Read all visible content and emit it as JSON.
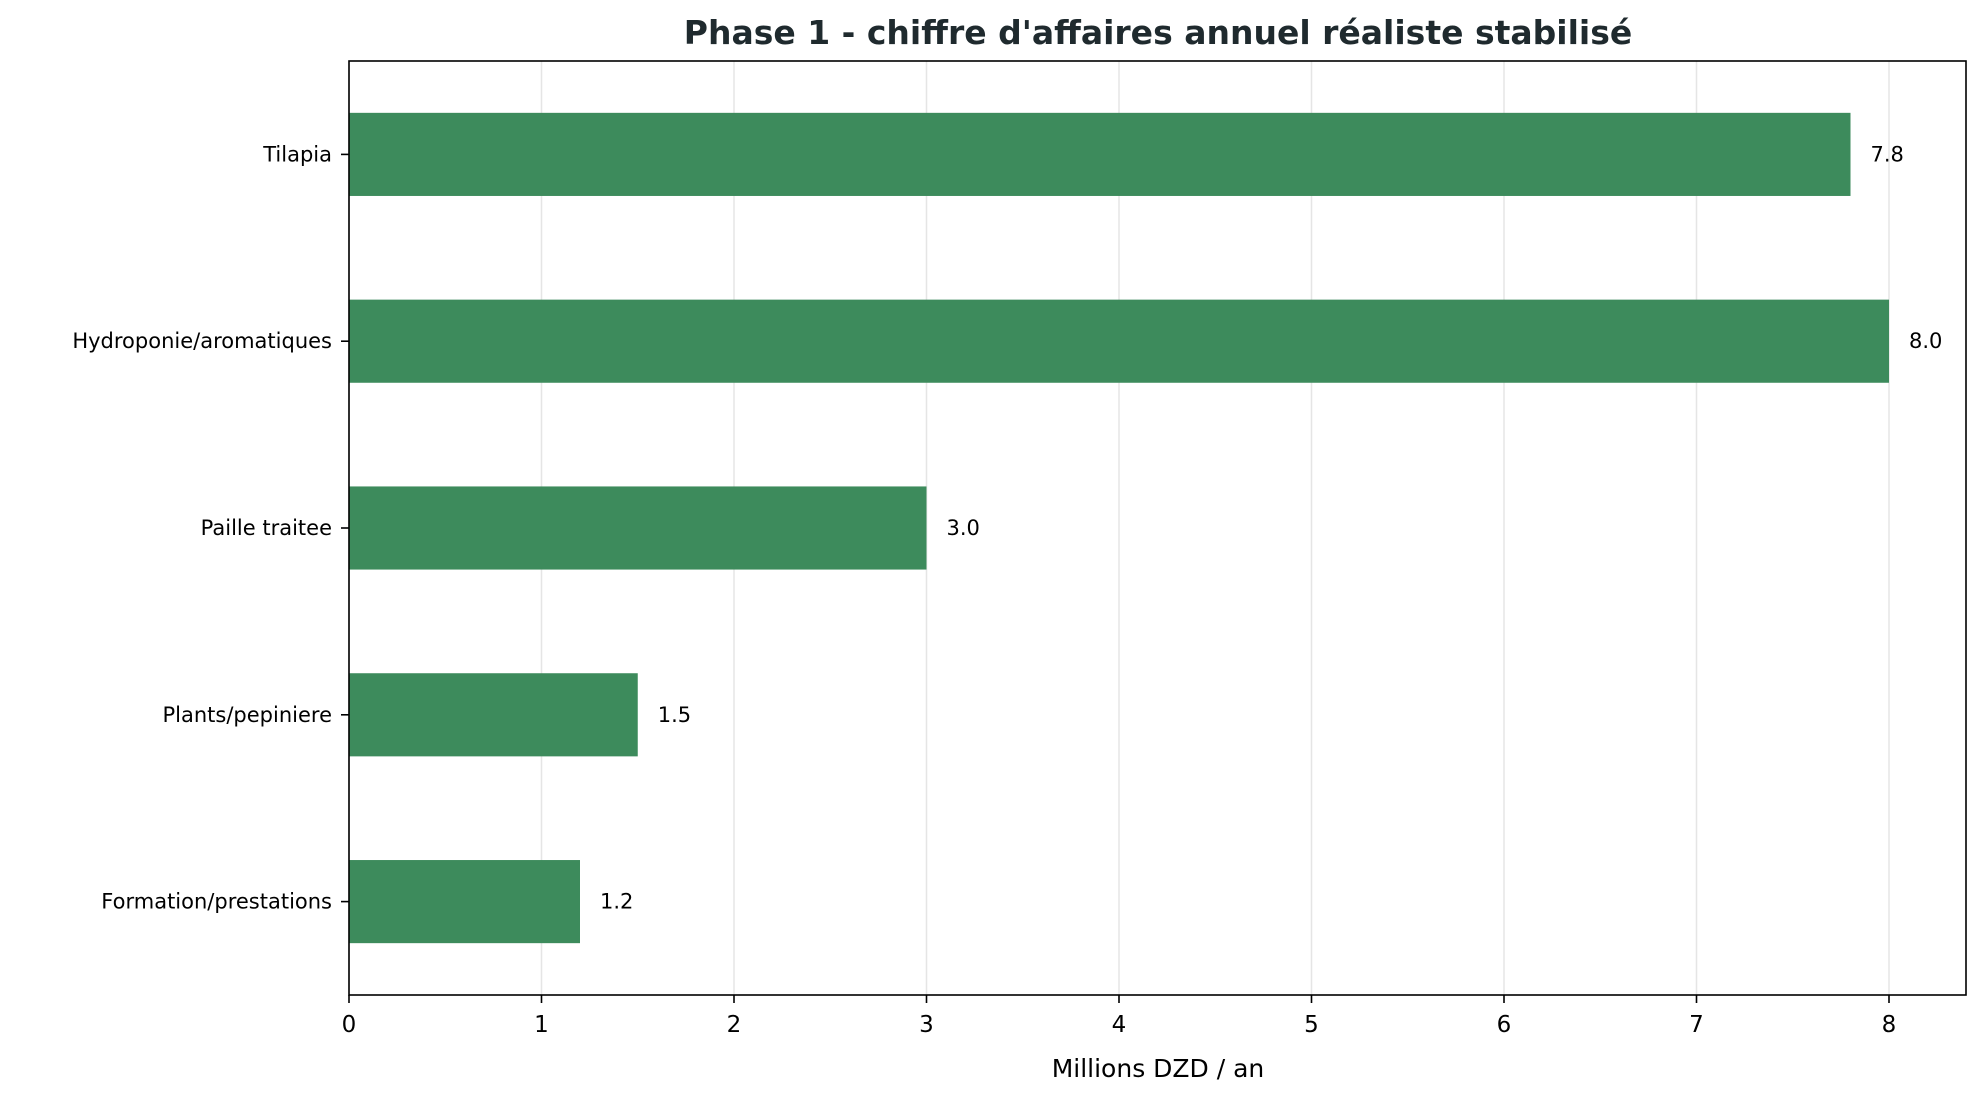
{
  "chart_data": {
    "type": "bar",
    "orientation": "horizontal",
    "title": "Phase 1 - chiffre d'affaires annuel réaliste stabilisé",
    "xlabel": "Millions DZD / an",
    "ylabel": "",
    "categories": [
      "Tilapia",
      "Hydroponie/aromatiques",
      "Paille traitee",
      "Plants/pepiniere",
      "Formation/prestations"
    ],
    "values": [
      7.8,
      8.0,
      3.0,
      1.5,
      1.2
    ],
    "data_labels": [
      "7.8",
      "8.0",
      "3.0",
      "1.5",
      "1.2"
    ],
    "xticks": [
      0,
      1,
      2,
      3,
      4,
      5,
      6,
      7,
      8
    ],
    "xlim": [
      0,
      8.4
    ],
    "grid": "vertical",
    "bar_color": "#3d8b5c",
    "legend": "none"
  }
}
